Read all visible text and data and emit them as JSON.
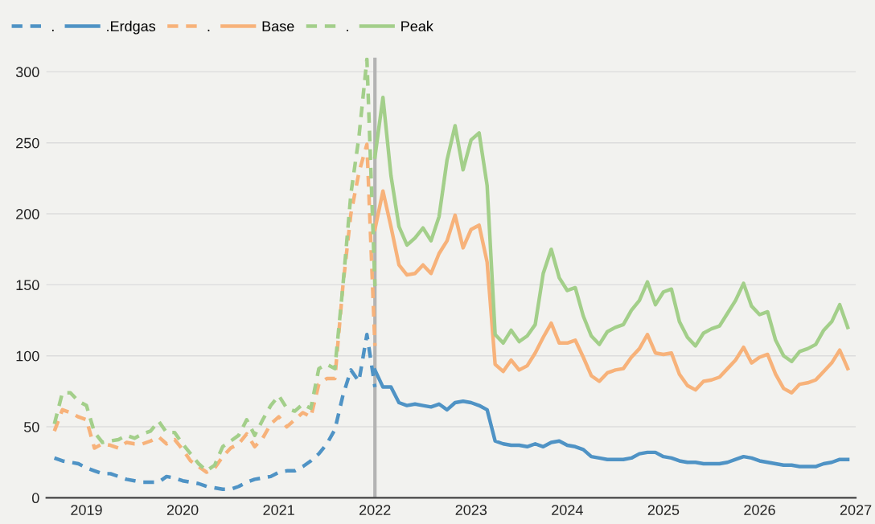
{
  "chart_data": {
    "type": "line",
    "series": [
      {
        "name": ".",
        "color": "#4f93c5",
        "line_style": "dashed",
        "x": [
          "2018-09",
          "2018-10",
          "2018-11",
          "2018-12",
          "2019-01",
          "2019-02",
          "2019-03",
          "2019-04",
          "2019-05",
          "2019-06",
          "2019-07",
          "2019-08",
          "2019-09",
          "2019-10",
          "2019-11",
          "2019-12",
          "2020-01",
          "2020-02",
          "2020-03",
          "2020-04",
          "2020-05",
          "2020-06",
          "2020-07",
          "2020-08",
          "2020-09",
          "2020-10",
          "2020-11",
          "2020-12",
          "2021-01",
          "2021-02",
          "2021-03",
          "2021-04",
          "2021-05",
          "2021-06",
          "2021-07",
          "2021-08",
          "2021-09",
          "2021-10",
          "2021-11",
          "2021-12",
          "2022-01"
        ],
        "values": [
          28,
          26,
          25,
          24,
          21,
          19,
          17,
          17,
          15,
          13,
          12,
          11,
          11,
          11,
          15,
          14,
          12,
          11,
          10,
          8,
          7,
          6,
          6,
          8,
          11,
          13,
          14,
          15,
          18,
          19,
          19,
          22,
          26,
          31,
          38,
          48,
          72,
          90,
          82,
          115,
          78
        ]
      },
      {
        "name": ".Erdgas",
        "color": "#4f93c5",
        "line_style": "solid",
        "x": [
          "2022-01",
          "2022-02",
          "2022-03",
          "2022-04",
          "2022-05",
          "2022-06",
          "2022-07",
          "2022-08",
          "2022-09",
          "2022-10",
          "2022-11",
          "2022-12",
          "2023-01",
          "2023-02",
          "2023-03",
          "2023-04",
          "2023-05",
          "2023-06",
          "2023-07",
          "2023-08",
          "2023-09",
          "2023-10",
          "2023-11",
          "2023-12",
          "2024-01",
          "2024-02",
          "2024-03",
          "2024-04",
          "2024-05",
          "2024-06",
          "2024-07",
          "2024-08",
          "2024-09",
          "2024-10",
          "2024-11",
          "2024-12",
          "2025-01",
          "2025-02",
          "2025-03",
          "2025-04",
          "2025-05",
          "2025-06",
          "2025-07",
          "2025-08",
          "2025-09",
          "2025-10",
          "2025-11",
          "2025-12",
          "2026-01",
          "2026-02",
          "2026-03",
          "2026-04",
          "2026-05",
          "2026-06",
          "2026-07",
          "2026-08",
          "2026-09",
          "2026-10",
          "2026-11",
          "2026-12"
        ],
        "values": [
          90,
          78,
          78,
          67,
          65,
          66,
          65,
          64,
          66,
          62,
          67,
          68,
          67,
          65,
          62,
          40,
          38,
          37,
          37,
          36,
          38,
          36,
          39,
          40,
          37,
          36,
          34,
          29,
          28,
          27,
          27,
          27,
          28,
          31,
          32,
          32,
          29,
          28,
          26,
          25,
          25,
          24,
          24,
          24,
          25,
          27,
          29,
          28,
          26,
          25,
          24,
          23,
          23,
          22,
          22,
          22,
          24,
          25,
          27,
          27
        ]
      },
      {
        "name": ".",
        "color": "#f7b27a",
        "line_style": "dashed",
        "x": [
          "2018-09",
          "2018-10",
          "2018-11",
          "2018-12",
          "2019-01",
          "2019-02",
          "2019-03",
          "2019-04",
          "2019-05",
          "2019-06",
          "2019-07",
          "2019-08",
          "2019-09",
          "2019-10",
          "2019-11",
          "2019-12",
          "2020-01",
          "2020-02",
          "2020-03",
          "2020-04",
          "2020-05",
          "2020-06",
          "2020-07",
          "2020-08",
          "2020-09",
          "2020-10",
          "2020-11",
          "2020-12",
          "2021-01",
          "2021-02",
          "2021-03",
          "2021-04",
          "2021-05",
          "2021-06",
          "2021-07",
          "2021-08",
          "2021-09",
          "2021-10",
          "2021-11",
          "2021-12",
          "2022-01"
        ],
        "values": [
          47,
          62,
          60,
          57,
          55,
          35,
          38,
          37,
          35,
          39,
          38,
          38,
          40,
          43,
          38,
          41,
          34,
          26,
          22,
          18,
          21,
          29,
          35,
          38,
          45,
          36,
          42,
          52,
          57,
          50,
          55,
          60,
          57,
          80,
          84,
          84,
          149,
          200,
          229,
          249,
          107
        ]
      },
      {
        "name": "Base",
        "color": "#f7b27a",
        "line_style": "solid",
        "x": [
          "2022-01",
          "2022-02",
          "2022-03",
          "2022-04",
          "2022-05",
          "2022-06",
          "2022-07",
          "2022-08",
          "2022-09",
          "2022-10",
          "2022-11",
          "2022-12",
          "2023-01",
          "2023-02",
          "2023-03",
          "2023-04",
          "2023-05",
          "2023-06",
          "2023-07",
          "2023-08",
          "2023-09",
          "2023-10",
          "2023-11",
          "2023-12",
          "2024-01",
          "2024-02",
          "2024-03",
          "2024-04",
          "2024-05",
          "2024-06",
          "2024-07",
          "2024-08",
          "2024-09",
          "2024-10",
          "2024-11",
          "2024-12",
          "2025-01",
          "2025-02",
          "2025-03",
          "2025-04",
          "2025-05",
          "2025-06",
          "2025-07",
          "2025-08",
          "2025-09",
          "2025-10",
          "2025-11",
          "2025-12",
          "2026-01",
          "2026-02",
          "2026-03",
          "2026-04",
          "2026-05",
          "2026-06",
          "2026-07",
          "2026-08",
          "2026-09",
          "2026-10",
          "2026-11",
          "2026-12"
        ],
        "values": [
          189,
          216,
          191,
          164,
          157,
          158,
          164,
          158,
          172,
          181,
          199,
          176,
          189,
          192,
          166,
          94,
          89,
          97,
          90,
          93,
          102,
          113,
          123,
          109,
          109,
          111,
          99,
          86,
          82,
          88,
          90,
          91,
          99,
          105,
          115,
          102,
          101,
          102,
          87,
          79,
          76,
          82,
          83,
          85,
          91,
          97,
          106,
          95,
          99,
          101,
          87,
          77,
          74,
          80,
          81,
          83,
          89,
          95,
          104,
          91
        ]
      },
      {
        "name": ".",
        "color": "#a3cf8a",
        "line_style": "dashed",
        "x": [
          "2018-09",
          "2018-10",
          "2018-11",
          "2018-12",
          "2019-01",
          "2019-02",
          "2019-03",
          "2019-04",
          "2019-05",
          "2019-06",
          "2019-07",
          "2019-08",
          "2019-09",
          "2019-10",
          "2019-11",
          "2019-12",
          "2020-01",
          "2020-02",
          "2020-03",
          "2020-04",
          "2020-05",
          "2020-06",
          "2020-07",
          "2020-08",
          "2020-09",
          "2020-10",
          "2020-11",
          "2020-12",
          "2021-01",
          "2021-02",
          "2021-03",
          "2021-04",
          "2021-05",
          "2021-06",
          "2021-07",
          "2021-08",
          "2021-09",
          "2021-10",
          "2021-11",
          "2021-12",
          "2022-01"
        ],
        "values": [
          52,
          74,
          74,
          68,
          65,
          46,
          39,
          40,
          41,
          44,
          42,
          45,
          47,
          54,
          46,
          46,
          38,
          31,
          24,
          19,
          23,
          36,
          40,
          44,
          55,
          44,
          55,
          65,
          72,
          63,
          61,
          66,
          63,
          91,
          94,
          91,
          149,
          214,
          254,
          309,
          149
        ]
      },
      {
        "name": "Peak",
        "color": "#a3cf8a",
        "line_style": "solid",
        "x": [
          "2022-01",
          "2022-02",
          "2022-03",
          "2022-04",
          "2022-05",
          "2022-06",
          "2022-07",
          "2022-08",
          "2022-09",
          "2022-10",
          "2022-11",
          "2022-12",
          "2023-01",
          "2023-02",
          "2023-03",
          "2023-04",
          "2023-05",
          "2023-06",
          "2023-07",
          "2023-08",
          "2023-09",
          "2023-10",
          "2023-11",
          "2023-12",
          "2024-01",
          "2024-02",
          "2024-03",
          "2024-04",
          "2024-05",
          "2024-06",
          "2024-07",
          "2024-08",
          "2024-09",
          "2024-10",
          "2024-11",
          "2024-12",
          "2025-01",
          "2025-02",
          "2025-03",
          "2025-04",
          "2025-05",
          "2025-06",
          "2025-07",
          "2025-08",
          "2025-09",
          "2025-10",
          "2025-11",
          "2025-12",
          "2026-01",
          "2026-02",
          "2026-03",
          "2026-04",
          "2026-05",
          "2026-06",
          "2026-07",
          "2026-08",
          "2026-09",
          "2026-10",
          "2026-11",
          "2026-12"
        ],
        "values": [
          240,
          282,
          227,
          191,
          178,
          183,
          190,
          181,
          198,
          238,
          262,
          231,
          252,
          257,
          220,
          115,
          109,
          118,
          110,
          114,
          122,
          158,
          175,
          155,
          146,
          148,
          128,
          114,
          108,
          117,
          120,
          122,
          132,
          139,
          152,
          136,
          145,
          147,
          124,
          113,
          107,
          116,
          119,
          121,
          130,
          139,
          151,
          135,
          129,
          131,
          111,
          100,
          96,
          103,
          105,
          108,
          118,
          124,
          136,
          120
        ]
      }
    ],
    "xlim": [
      "2018-08",
      "2027-01"
    ],
    "xticks": [
      {
        "value": "2019",
        "label": "2019"
      },
      {
        "value": "2020",
        "label": "2020"
      },
      {
        "value": "2021",
        "label": "2021"
      },
      {
        "value": "2022",
        "label": "2022"
      },
      {
        "value": "2023",
        "label": "2023"
      },
      {
        "value": "2024",
        "label": "2024"
      },
      {
        "value": "2025",
        "label": "2025"
      },
      {
        "value": "2026",
        "label": "2026"
      },
      {
        "value": "2027",
        "label": "2027"
      }
    ],
    "ylim": [
      0,
      310
    ],
    "yticks": [
      0,
      50,
      100,
      150,
      200,
      250,
      300
    ],
    "grid": "y",
    "legend": "top left",
    "ref_lines": [
      {
        "axis": "x",
        "value": "2022-01",
        "color": "#b3b3b3"
      }
    ]
  }
}
